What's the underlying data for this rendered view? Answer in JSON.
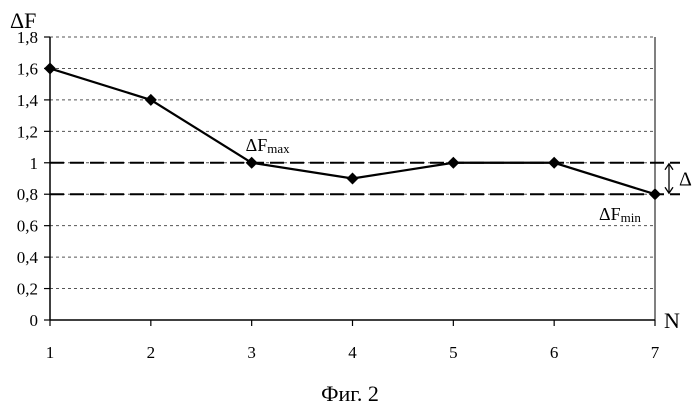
{
  "caption": "Фиг. 2",
  "chart_data": {
    "type": "line",
    "ylabel": "ΔF",
    "xlabel": "N",
    "x": [
      1,
      2,
      3,
      4,
      5,
      6,
      7
    ],
    "x_ticks": [
      "1",
      "2",
      "3",
      "4",
      "5",
      "6",
      "7"
    ],
    "y_ticks": [
      "0",
      "0,2",
      "0,4",
      "0,6",
      "0,8",
      "1",
      "1,2",
      "1,4",
      "1,6",
      "1,8"
    ],
    "ylim": [
      0,
      1.8
    ],
    "grid": "horizontal dashed",
    "series": [
      {
        "values": [
          1.6,
          1.4,
          1.0,
          0.9,
          1.0,
          1.0,
          0.8
        ]
      }
    ],
    "reference_lines": [
      {
        "y": 1.0,
        "style": "dashed"
      },
      {
        "y": 0.8,
        "style": "dashed"
      }
    ],
    "annotations": {
      "max": {
        "base": "ΔF",
        "sub": "max",
        "at_x": 3
      },
      "min": {
        "base": "ΔF",
        "sub": "min",
        "at_x": 7
      },
      "delta": {
        "label": "Δ",
        "from": 0.8,
        "to": 1.0
      }
    },
    "colors": {
      "line": "#000000",
      "marker": "#000000",
      "grid": "#555555"
    }
  }
}
